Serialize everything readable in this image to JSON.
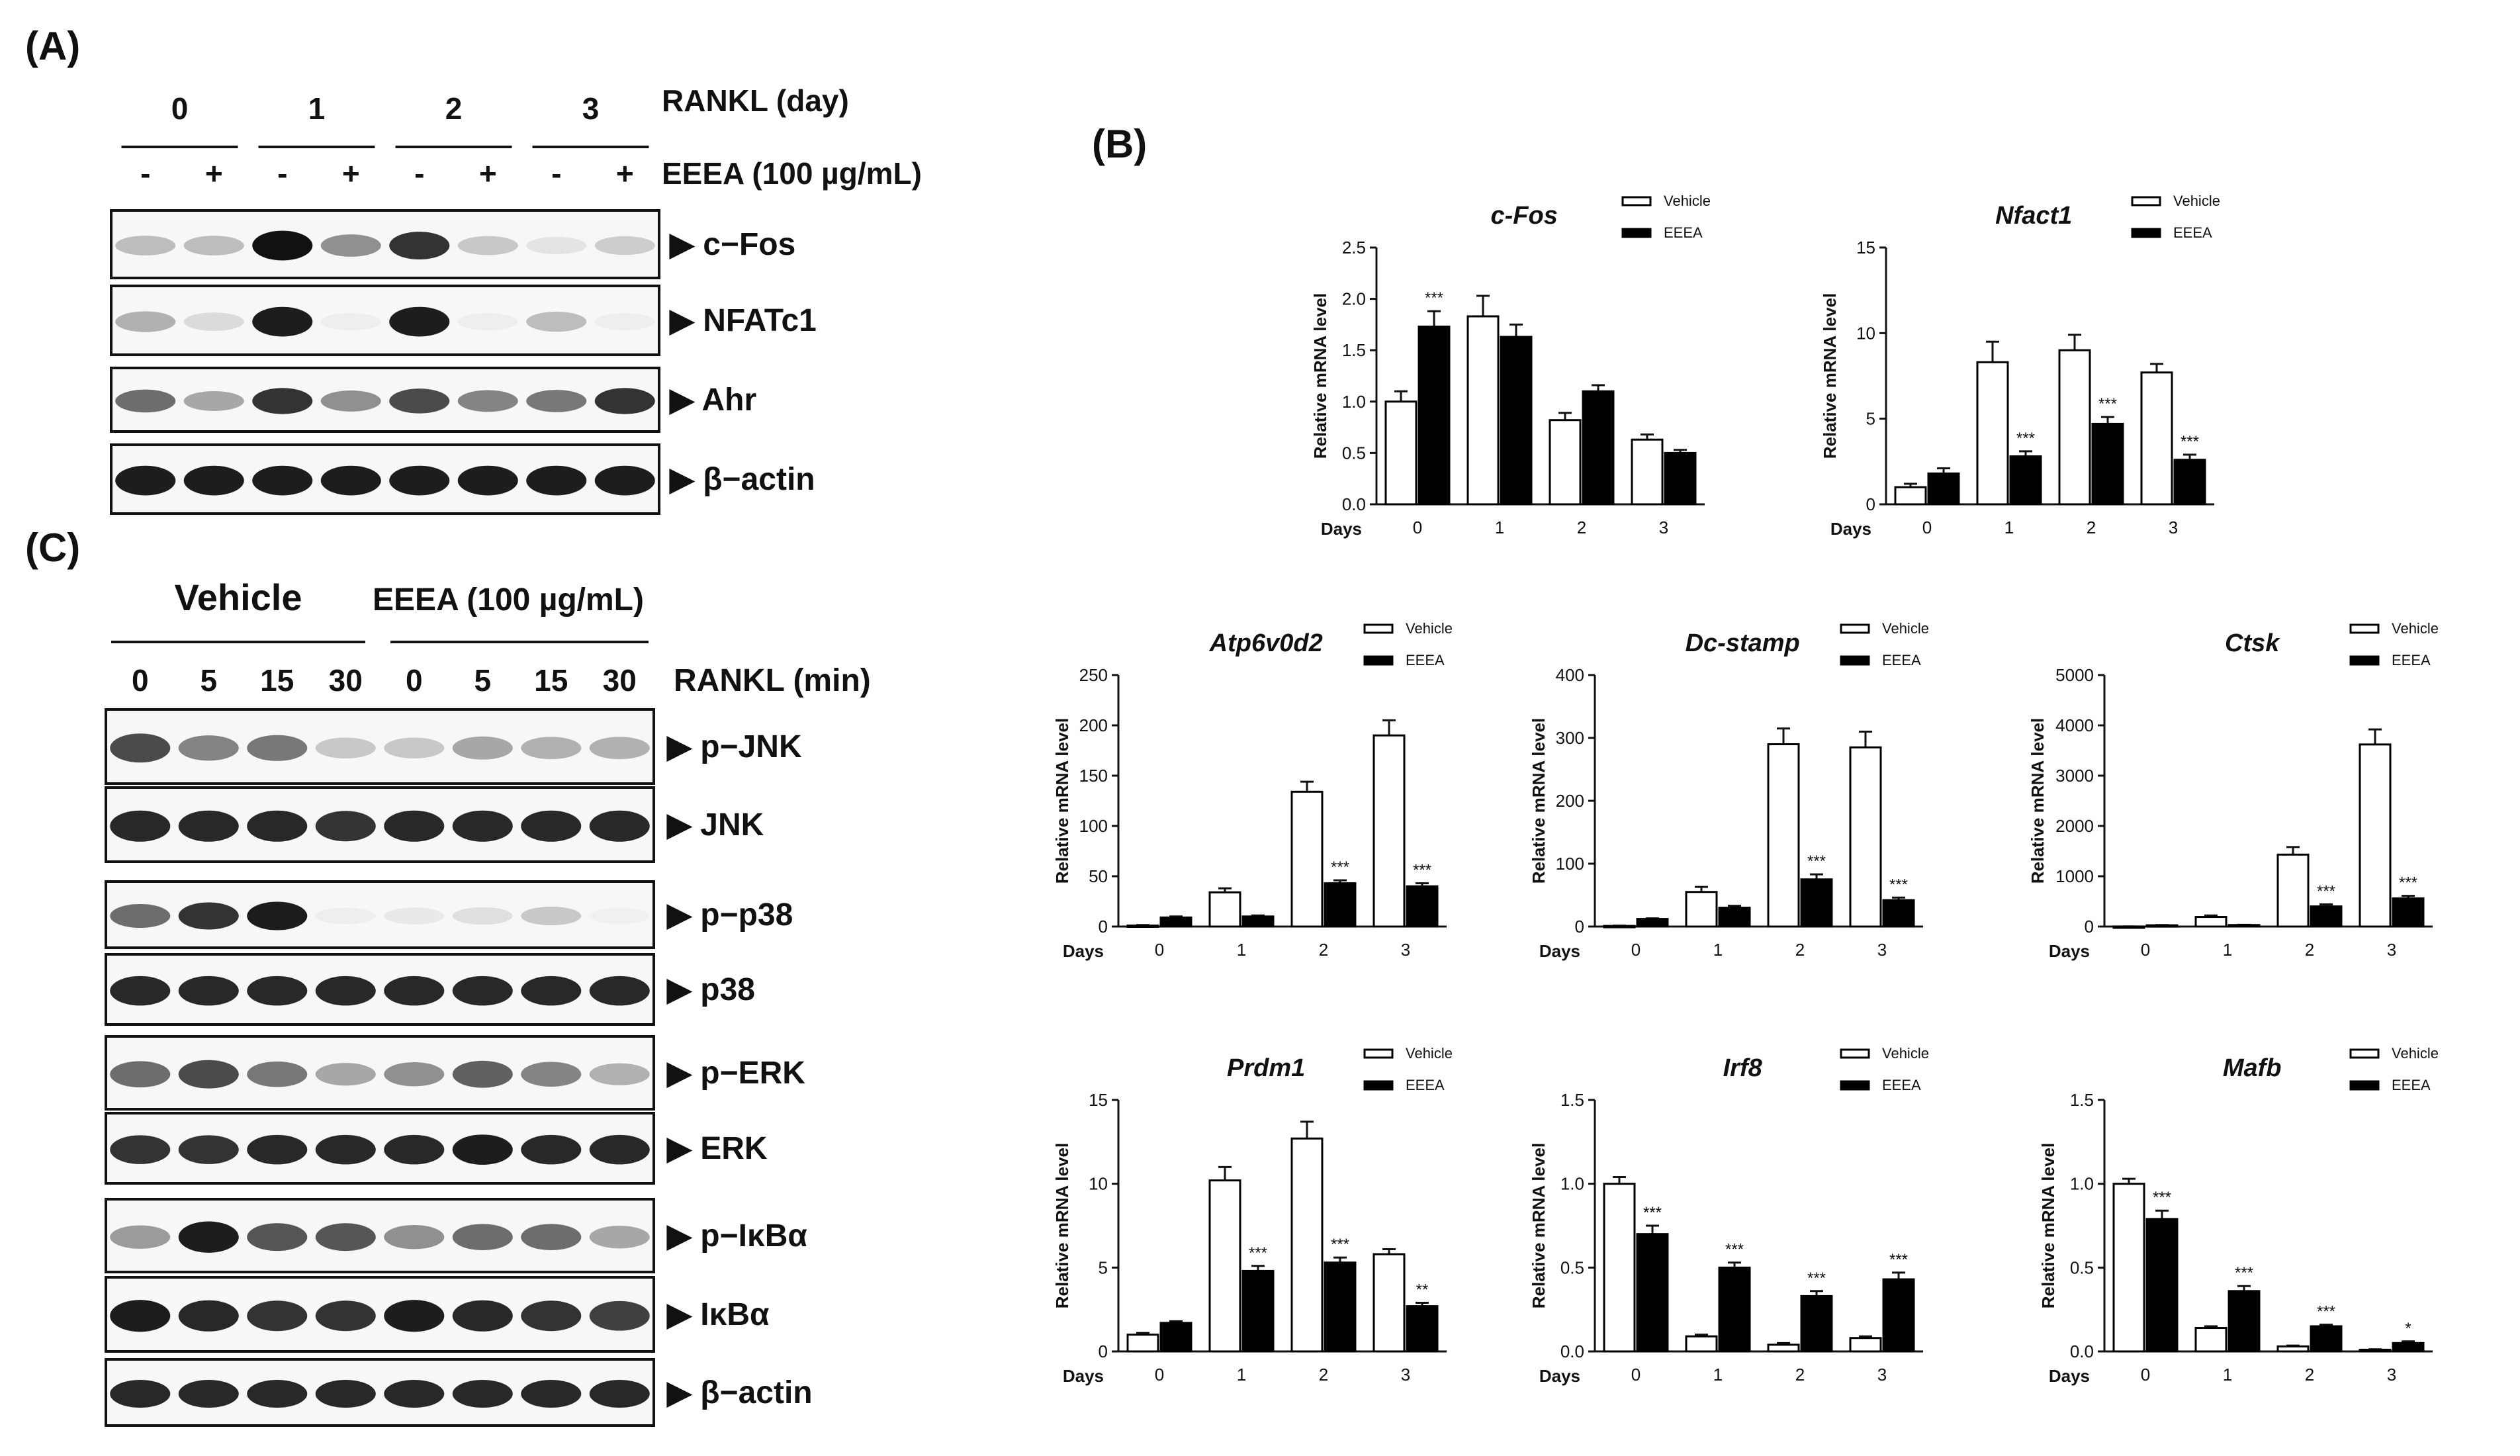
{
  "panel_labels": {
    "a": "(A)",
    "b": "(B)",
    "c": "(C)"
  },
  "panel_a": {
    "days": [
      "0",
      "1",
      "2",
      "3"
    ],
    "rankl_label": "RANKL (day)",
    "treatment_label": "EEEA (100 µg/mL)",
    "signs": [
      "-",
      "+",
      "-",
      "+",
      "-",
      "+",
      "-",
      "+"
    ],
    "blots": [
      "▶ c−Fos",
      "▶ NFATc1",
      "▶ Ahr",
      "▶ β−actin"
    ],
    "band_intensity": [
      [
        0.25,
        0.25,
        1.0,
        0.45,
        0.85,
        0.2,
        0.08,
        0.18
      ],
      [
        0.3,
        0.12,
        0.95,
        0.04,
        0.95,
        0.04,
        0.25,
        0.04
      ],
      [
        0.6,
        0.35,
        0.85,
        0.45,
        0.75,
        0.5,
        0.55,
        0.85
      ],
      [
        0.95,
        0.95,
        0.95,
        0.95,
        0.95,
        0.95,
        0.95,
        0.95
      ]
    ]
  },
  "panel_c": {
    "group_vehicle": "Vehicle",
    "group_eeea": "EEEA (100 µg/mL)",
    "times": [
      "0",
      "5",
      "15",
      "30",
      "0",
      "5",
      "15",
      "30"
    ],
    "rankl_label": "RANKL (min)",
    "blots": [
      "▶ p−JNK",
      "▶ JNK",
      "▶ p−p38",
      "▶ p38",
      "▶ p−ERK",
      "▶ ERK",
      "▶ p−IκBα",
      "▶ IκBα",
      "▶ β−actin"
    ],
    "band_intensity": [
      [
        0.75,
        0.5,
        0.55,
        0.2,
        0.2,
        0.35,
        0.3,
        0.3
      ],
      [
        0.9,
        0.9,
        0.9,
        0.85,
        0.9,
        0.9,
        0.9,
        0.9
      ],
      [
        0.6,
        0.85,
        0.95,
        0.04,
        0.06,
        0.1,
        0.2,
        0.03
      ],
      [
        0.9,
        0.9,
        0.9,
        0.9,
        0.9,
        0.9,
        0.9,
        0.9
      ],
      [
        0.6,
        0.75,
        0.55,
        0.35,
        0.45,
        0.65,
        0.5,
        0.3
      ],
      [
        0.85,
        0.85,
        0.9,
        0.9,
        0.9,
        0.95,
        0.9,
        0.9
      ],
      [
        0.4,
        0.95,
        0.7,
        0.7,
        0.45,
        0.6,
        0.6,
        0.35
      ],
      [
        0.95,
        0.9,
        0.85,
        0.85,
        0.95,
        0.9,
        0.85,
        0.8
      ],
      [
        0.9,
        0.9,
        0.9,
        0.9,
        0.9,
        0.9,
        0.9,
        0.9
      ]
    ]
  },
  "chart_data": [
    {
      "type": "bar",
      "title": "c-Fos",
      "ylabel": "Relative mRNA level",
      "xlabel": "Days",
      "categories": [
        "0",
        "1",
        "2",
        "3"
      ],
      "ylim": [
        0,
        2.5
      ],
      "yticks": [
        "0.0",
        "0.5",
        "1.0",
        "1.5",
        "2.0",
        "2.5"
      ],
      "series": [
        {
          "name": "Vehicle",
          "values": [
            1.0,
            1.83,
            0.82,
            0.63
          ],
          "errors": [
            0.1,
            0.2,
            0.07,
            0.05
          ]
        },
        {
          "name": "EEEA",
          "values": [
            1.73,
            1.63,
            1.1,
            0.5
          ],
          "errors": [
            0.15,
            0.12,
            0.06,
            0.03
          ]
        }
      ],
      "annotations": [
        "***",
        "",
        "",
        ""
      ]
    },
    {
      "type": "bar",
      "title": "Nfact1",
      "ylabel": "Relative mRNA level",
      "xlabel": "Days",
      "categories": [
        "0",
        "1",
        "2",
        "3"
      ],
      "ylim": [
        0,
        15
      ],
      "yticks": [
        "0",
        "5",
        "10",
        "15"
      ],
      "series": [
        {
          "name": "Vehicle",
          "values": [
            1.0,
            8.3,
            9.0,
            7.7
          ],
          "errors": [
            0.2,
            1.2,
            0.9,
            0.5
          ]
        },
        {
          "name": "EEEA",
          "values": [
            1.8,
            2.8,
            4.7,
            2.6
          ],
          "errors": [
            0.3,
            0.3,
            0.4,
            0.3
          ]
        }
      ],
      "annotations": [
        "",
        "***",
        "***",
        "***"
      ]
    },
    {
      "type": "bar",
      "title": "Atp6v0d2",
      "ylabel": "Relative mRNA level",
      "xlabel": "Days",
      "categories": [
        "0",
        "1",
        "2",
        "3"
      ],
      "ylim": [
        0,
        250
      ],
      "yticks": [
        "0",
        "50",
        "100",
        "150",
        "200",
        "250"
      ],
      "series": [
        {
          "name": "Vehicle",
          "values": [
            1,
            34,
            134,
            190
          ],
          "errors": [
            0.5,
            4,
            10,
            15
          ]
        },
        {
          "name": "EEEA",
          "values": [
            9,
            10,
            43,
            40
          ],
          "errors": [
            1,
            1,
            3,
            3
          ]
        }
      ],
      "annotations": [
        "",
        "",
        "***",
        "***"
      ]
    },
    {
      "type": "bar",
      "title": "Dc-stamp",
      "ylabel": "Relative mRNA level",
      "xlabel": "Days",
      "categories": [
        "0",
        "1",
        "2",
        "3"
      ],
      "ylim": [
        0,
        400
      ],
      "yticks": [
        "0",
        "100",
        "200",
        "300",
        "400"
      ],
      "series": [
        {
          "name": "Vehicle",
          "values": [
            1,
            55,
            290,
            285
          ],
          "errors": [
            0.5,
            8,
            25,
            25
          ]
        },
        {
          "name": "EEEA",
          "values": [
            12,
            30,
            75,
            42
          ],
          "errors": [
            1,
            3,
            8,
            4
          ]
        }
      ],
      "annotations": [
        "",
        "",
        "***",
        "***"
      ]
    },
    {
      "type": "bar",
      "title": "Ctsk",
      "ylabel": "Relative mRNA level",
      "xlabel": "Days",
      "categories": [
        "0",
        "1",
        "2",
        "3"
      ],
      "ylim": [
        0,
        5000
      ],
      "yticks": [
        "0",
        "1000",
        "2000",
        "3000",
        "4000",
        "5000"
      ],
      "series": [
        {
          "name": "Vehicle",
          "values": [
            1,
            190,
            1430,
            3620
          ],
          "errors": [
            1,
            30,
            150,
            300
          ]
        },
        {
          "name": "EEEA",
          "values": [
            25,
            30,
            400,
            560
          ],
          "errors": [
            5,
            5,
            40,
            50
          ]
        }
      ],
      "annotations": [
        "",
        "",
        "***",
        "***"
      ]
    },
    {
      "type": "bar",
      "title": "Prdm1",
      "ylabel": "Relative mRNA level",
      "xlabel": "Days",
      "categories": [
        "0",
        "1",
        "2",
        "3"
      ],
      "ylim": [
        0,
        15
      ],
      "yticks": [
        "0",
        "5",
        "10",
        "15"
      ],
      "series": [
        {
          "name": "Vehicle",
          "values": [
            1.0,
            10.2,
            12.7,
            5.8
          ],
          "errors": [
            0.1,
            0.8,
            1.0,
            0.3
          ]
        },
        {
          "name": "EEEA",
          "values": [
            1.7,
            4.8,
            5.3,
            2.7
          ],
          "errors": [
            0.1,
            0.3,
            0.3,
            0.2
          ]
        }
      ],
      "annotations": [
        "",
        "***",
        "***",
        "**"
      ]
    },
    {
      "type": "bar",
      "title": "Irf8",
      "ylabel": "Relative mRNA level",
      "xlabel": "Days",
      "categories": [
        "0",
        "1",
        "2",
        "3"
      ],
      "ylim": [
        0,
        1.5
      ],
      "yticks": [
        "0.0",
        "0.5",
        "1.0",
        "1.5"
      ],
      "series": [
        {
          "name": "Vehicle",
          "values": [
            1.0,
            0.09,
            0.04,
            0.08
          ],
          "errors": [
            0.04,
            0.01,
            0.01,
            0.01
          ]
        },
        {
          "name": "EEEA",
          "values": [
            0.7,
            0.5,
            0.33,
            0.43
          ],
          "errors": [
            0.05,
            0.03,
            0.03,
            0.04
          ]
        }
      ],
      "annotations": [
        "***",
        "***",
        "***",
        "***"
      ]
    },
    {
      "type": "bar",
      "title": "Mafb",
      "ylabel": "Relative mRNA level",
      "xlabel": "Days",
      "categories": [
        "0",
        "1",
        "2",
        "3"
      ],
      "ylim": [
        0,
        1.5
      ],
      "yticks": [
        "0.0",
        "0.5",
        "1.0",
        "1.5"
      ],
      "series": [
        {
          "name": "Vehicle",
          "values": [
            1.0,
            0.14,
            0.03,
            0.01
          ],
          "errors": [
            0.03,
            0.01,
            0.005,
            0.003
          ]
        },
        {
          "name": "EEEA",
          "values": [
            0.79,
            0.36,
            0.15,
            0.05
          ],
          "errors": [
            0.05,
            0.03,
            0.01,
            0.01
          ]
        }
      ],
      "annotations": [
        "***",
        "***",
        "***",
        "*"
      ]
    }
  ]
}
